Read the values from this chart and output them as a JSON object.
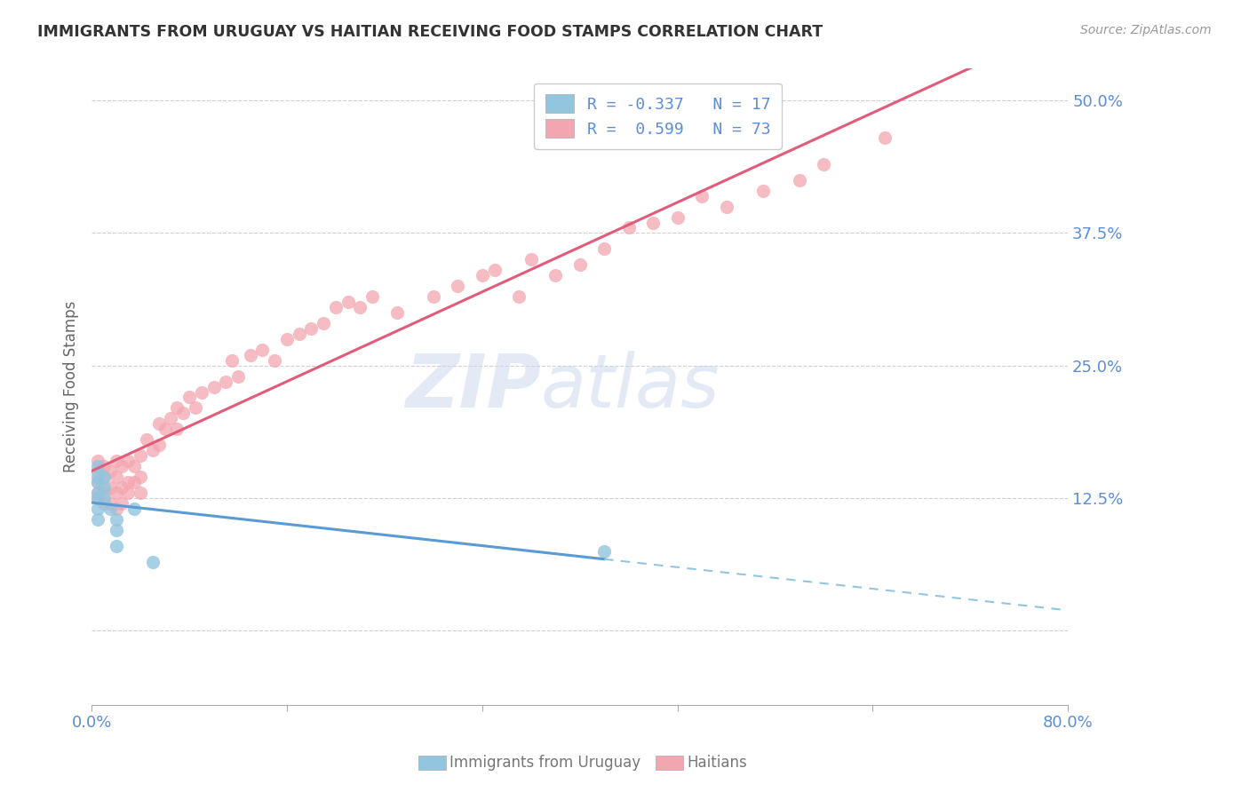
{
  "title": "IMMIGRANTS FROM URUGUAY VS HAITIAN RECEIVING FOOD STAMPS CORRELATION CHART",
  "source": "Source: ZipAtlas.com",
  "ylabel": "Receiving Food Stamps",
  "xlim": [
    0.0,
    0.8
  ],
  "ylim": [
    -0.07,
    0.53
  ],
  "yticks": [
    0.0,
    0.125,
    0.25,
    0.375,
    0.5
  ],
  "ytick_labels": [
    "",
    "12.5%",
    "25.0%",
    "37.5%",
    "50.0%"
  ],
  "xtick_labels": [
    "0.0%",
    "",
    "",
    "",
    "",
    "80.0%"
  ],
  "xtick_positions": [
    0.0,
    0.16,
    0.32,
    0.48,
    0.64,
    0.8
  ],
  "watermark_line1": "ZIP",
  "watermark_line2": "atlas",
  "legend_r_uruguay": "R = -0.337",
  "legend_n_uruguay": "N = 17",
  "legend_r_haitian": "R =  0.599",
  "legend_n_haitian": "N = 73",
  "color_uruguay": "#92c5de",
  "color_haitian": "#f4a6b0",
  "color_line_uruguay_solid": "#5b9bd5",
  "color_line_uruguay_dash": "#92c5de",
  "color_line_haitian": "#e05c7a",
  "axis_label_color": "#5b8dd9",
  "grid_color": "#d0d0d0",
  "uruguay_x": [
    0.005,
    0.005,
    0.005,
    0.005,
    0.005,
    0.005,
    0.005,
    0.01,
    0.01,
    0.01,
    0.015,
    0.02,
    0.02,
    0.02,
    0.035,
    0.05,
    0.42
  ],
  "uruguay_y": [
    0.155,
    0.145,
    0.14,
    0.13,
    0.125,
    0.115,
    0.105,
    0.145,
    0.135,
    0.125,
    0.115,
    0.105,
    0.095,
    0.08,
    0.115,
    0.065,
    0.075
  ],
  "haitian_x": [
    0.005,
    0.005,
    0.005,
    0.005,
    0.005,
    0.01,
    0.01,
    0.01,
    0.01,
    0.015,
    0.015,
    0.015,
    0.02,
    0.02,
    0.02,
    0.02,
    0.025,
    0.025,
    0.025,
    0.03,
    0.03,
    0.03,
    0.035,
    0.035,
    0.04,
    0.04,
    0.04,
    0.045,
    0.05,
    0.055,
    0.055,
    0.06,
    0.065,
    0.07,
    0.07,
    0.075,
    0.08,
    0.085,
    0.09,
    0.1,
    0.11,
    0.115,
    0.12,
    0.13,
    0.14,
    0.15,
    0.16,
    0.17,
    0.18,
    0.19,
    0.2,
    0.21,
    0.22,
    0.23,
    0.25,
    0.28,
    0.3,
    0.32,
    0.33,
    0.35,
    0.36,
    0.38,
    0.4,
    0.42,
    0.44,
    0.46,
    0.48,
    0.5,
    0.52,
    0.55,
    0.58,
    0.6,
    0.65
  ],
  "haitian_y": [
    0.125,
    0.13,
    0.14,
    0.15,
    0.16,
    0.12,
    0.13,
    0.145,
    0.155,
    0.12,
    0.135,
    0.15,
    0.115,
    0.13,
    0.145,
    0.16,
    0.12,
    0.135,
    0.155,
    0.13,
    0.14,
    0.16,
    0.14,
    0.155,
    0.13,
    0.145,
    0.165,
    0.18,
    0.17,
    0.175,
    0.195,
    0.19,
    0.2,
    0.19,
    0.21,
    0.205,
    0.22,
    0.21,
    0.225,
    0.23,
    0.235,
    0.255,
    0.24,
    0.26,
    0.265,
    0.255,
    0.275,
    0.28,
    0.285,
    0.29,
    0.305,
    0.31,
    0.305,
    0.315,
    0.3,
    0.315,
    0.325,
    0.335,
    0.34,
    0.315,
    0.35,
    0.335,
    0.345,
    0.36,
    0.38,
    0.385,
    0.39,
    0.41,
    0.4,
    0.415,
    0.425,
    0.44,
    0.465
  ]
}
